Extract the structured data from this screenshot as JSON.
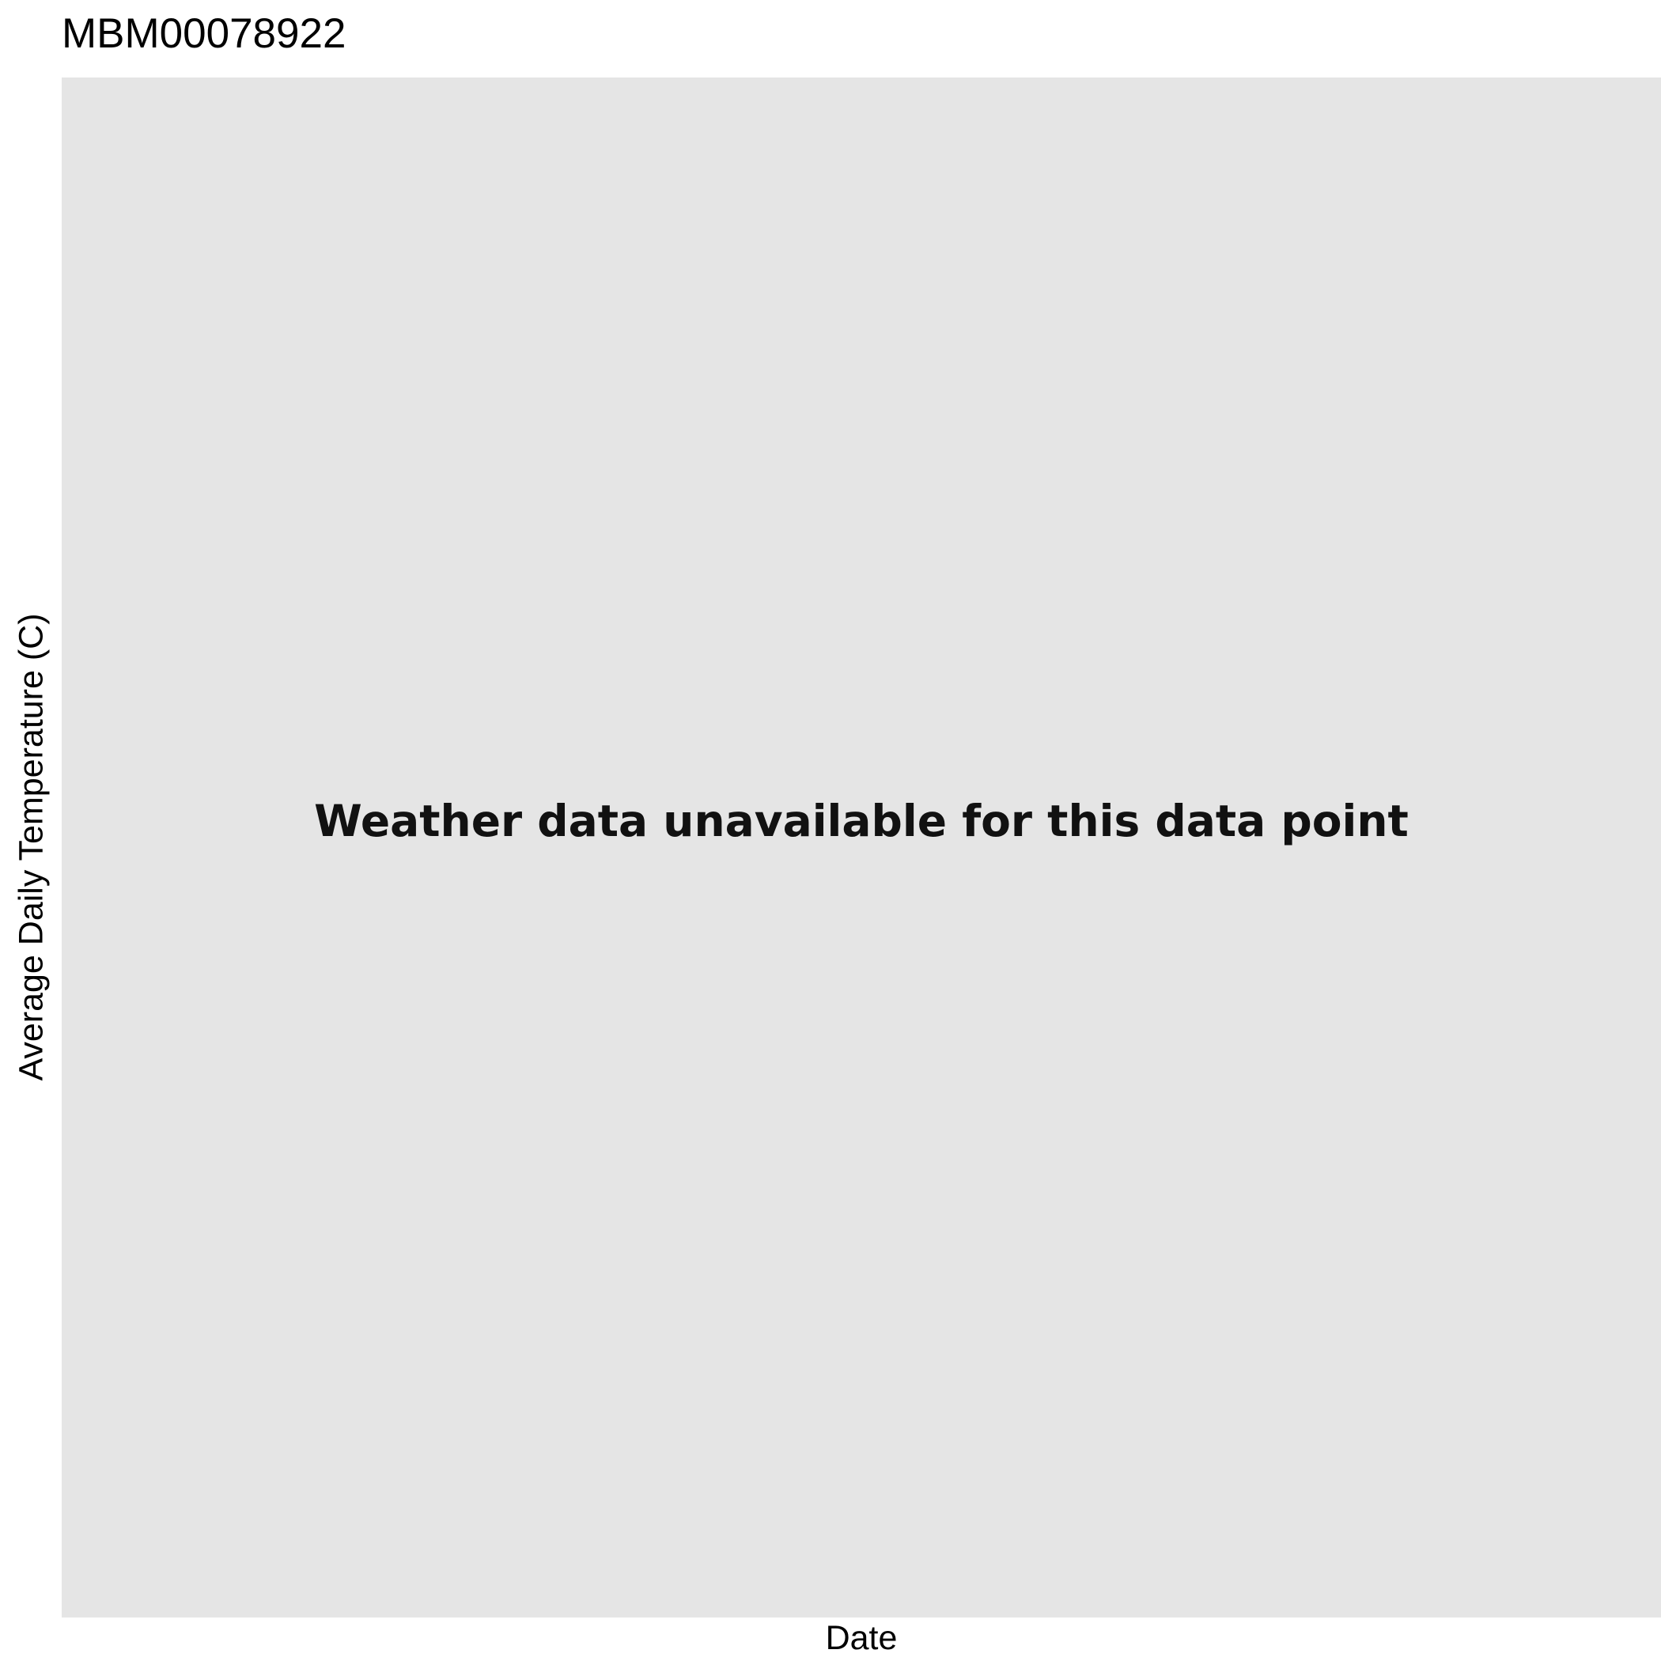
{
  "chart_data": {
    "type": "line",
    "title": "MBM00078922",
    "xlabel": "Date",
    "ylabel": "Average Daily Temperature (C)",
    "series": [],
    "grid": false,
    "legend": "none",
    "annotation": "Weather data unavailable for this data point"
  },
  "colors": {
    "panel_background": "#e5e5e5",
    "page_background": "#ffffff",
    "text": "#000000"
  }
}
